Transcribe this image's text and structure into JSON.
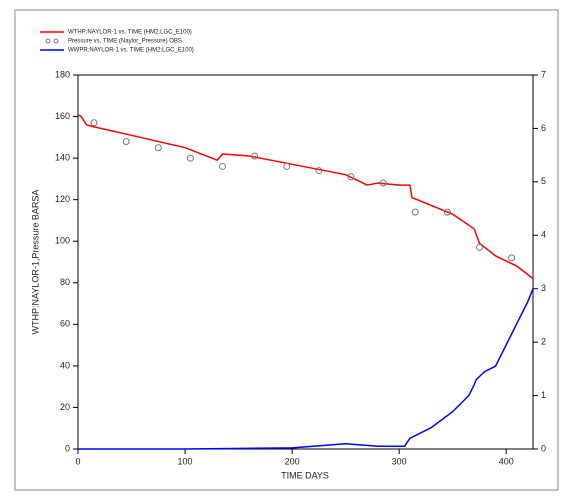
{
  "chart_data": {
    "type": "line",
    "xlabel": "TIME  DAYS",
    "ylabel": "WTHP:NAYLOR-1,Pressure  BARSA",
    "xlim": [
      0,
      425
    ],
    "xticks": [
      0,
      100,
      200,
      300,
      400
    ],
    "ylim": [
      0,
      180
    ],
    "yticks": [
      0,
      20,
      40,
      60,
      80,
      100,
      120,
      140,
      160,
      180
    ],
    "y2lim": [
      0,
      7
    ],
    "y2ticks": [
      0,
      1,
      2,
      3,
      4,
      5,
      6,
      7
    ],
    "legend": "top-left",
    "series": [
      {
        "name": "WTHP:NAYLOR-1 vs. TIME (HM2:LGC_E100)",
        "color": "#ff0000",
        "style": "line",
        "x": [
          0,
          3,
          8,
          15,
          50,
          100,
          125,
          130,
          135,
          160,
          200,
          250,
          270,
          280,
          300,
          310,
          312,
          350,
          370,
          375,
          390,
          410,
          425
        ],
        "values": [
          161,
          160,
          156,
          155,
          151,
          145,
          140,
          139,
          142,
          141,
          137,
          132,
          127,
          128,
          127,
          127,
          121,
          113,
          106,
          99,
          93,
          88,
          82
        ]
      },
      {
        "name": "Pressure vs. TIME (Naylor_Pressure) OBS",
        "color": "#777777",
        "style": "markers",
        "x": [
          15,
          45,
          75,
          105,
          135,
          165,
          195,
          225,
          255,
          285,
          315,
          345,
          375,
          405
        ],
        "values": [
          157,
          148,
          145,
          140,
          136,
          141,
          136,
          134,
          131,
          128,
          114,
          114,
          97,
          92
        ]
      },
      {
        "name": "WWPR:NAYLOR-1 vs. TIME (HM2:LGC_E100)",
        "color": "#0000ff",
        "style": "line",
        "axis": "y2",
        "x": [
          0,
          100,
          200,
          250,
          280,
          305,
          310,
          330,
          350,
          365,
          370,
          372,
          380,
          390,
          400,
          410,
          420,
          425
        ],
        "values": [
          0,
          0,
          0.02,
          0.1,
          0.05,
          0.05,
          0.2,
          0.4,
          0.7,
          1.0,
          1.2,
          1.3,
          1.45,
          1.55,
          1.95,
          2.35,
          2.75,
          3.0
        ]
      }
    ]
  }
}
